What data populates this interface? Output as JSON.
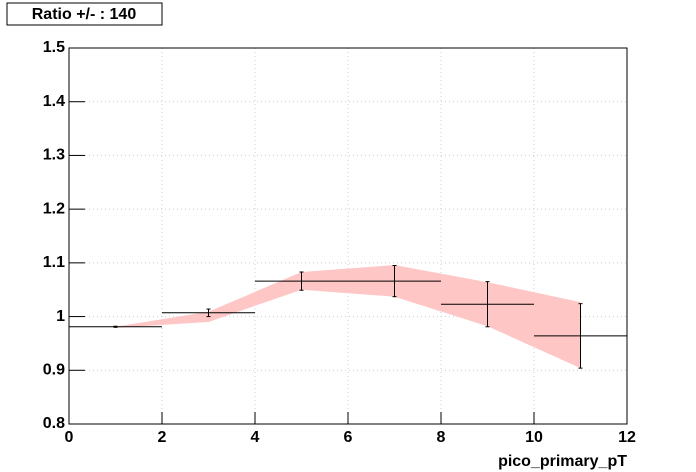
{
  "chart_data": {
    "type": "errorbar",
    "title": "Ratio +/- : 140",
    "x_label": "pico_primary_pT",
    "xlim": [
      0,
      12
    ],
    "xticks": [
      0,
      2,
      4,
      6,
      8,
      10,
      12
    ],
    "ylim": [
      0.8,
      1.5
    ],
    "yticks": [
      0.8,
      0.9,
      1,
      1.1,
      1.2,
      1.3,
      1.4,
      1.5
    ],
    "grid": true,
    "band": {
      "color": "#ffc6c6",
      "x": [
        1,
        3,
        5,
        7,
        9,
        11
      ],
      "upper": [
        0.981,
        1.009,
        1.083,
        1.096,
        1.064,
        1.027
      ],
      "lower": [
        0.979,
        0.99,
        1.05,
        1.037,
        0.982,
        0.904
      ]
    },
    "series": [
      {
        "color": "#000000",
        "x": [
          1,
          3,
          5,
          7,
          9,
          11
        ],
        "xerr": [
          1,
          1,
          1,
          1,
          1,
          1
        ],
        "values": [
          0.981,
          1.007,
          1.066,
          1.066,
          1.023,
          0.964
        ],
        "yerr": [
          0.001,
          0.007,
          0.017,
          0.029,
          0.042,
          0.06
        ]
      }
    ]
  }
}
